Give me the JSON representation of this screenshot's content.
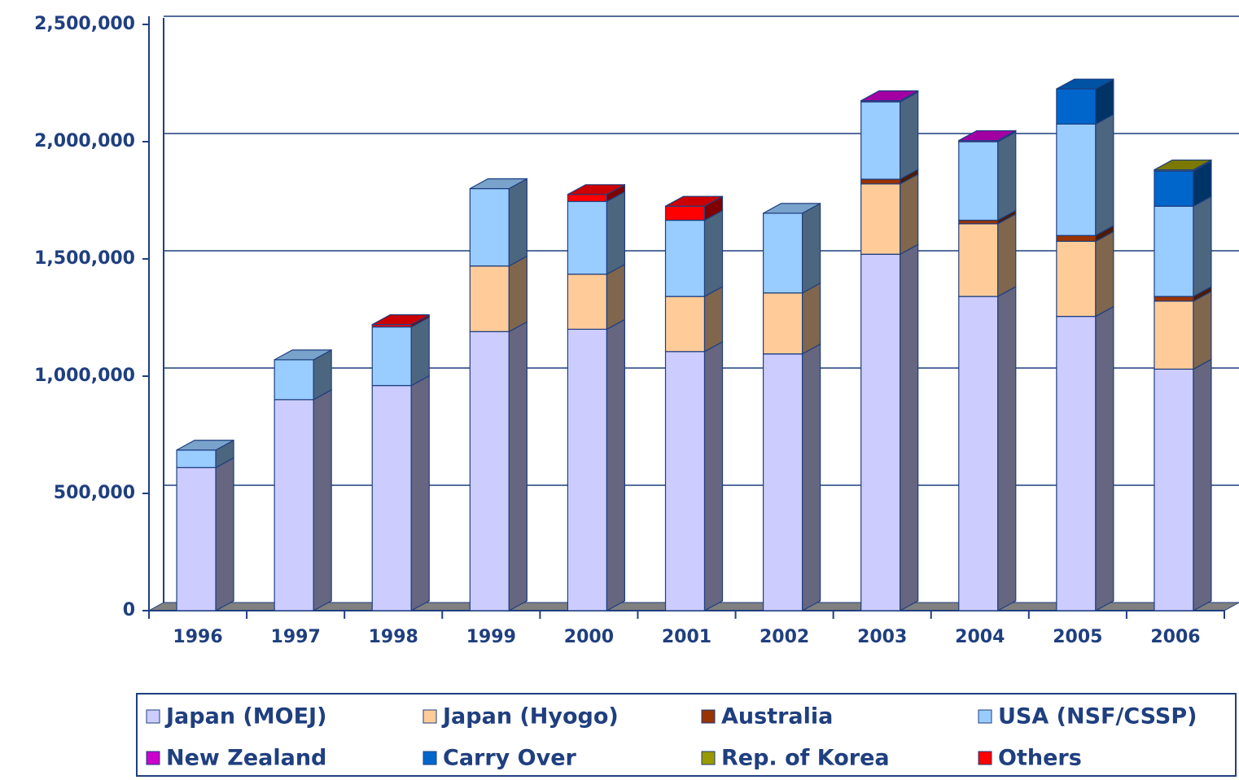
{
  "chart_data": {
    "type": "bar3d_stacked",
    "categories": [
      "1996",
      "1997",
      "1998",
      "1999",
      "2000",
      "2001",
      "2002",
      "2003",
      "2004",
      "2005",
      "2006"
    ],
    "series": [
      {
        "name": "Japan (MOEJ)",
        "color": "#ccccff",
        "values": [
          610000,
          900000,
          960000,
          1190000,
          1200000,
          1105000,
          1095000,
          1520000,
          1340000,
          1255000,
          1030000
        ]
      },
      {
        "name": "Japan (Hyogo)",
        "color": "#ffcc99",
        "values": [
          0,
          0,
          0,
          280000,
          235000,
          235000,
          260000,
          300000,
          310000,
          320000,
          290000
        ]
      },
      {
        "name": "Australia",
        "color": "#993300",
        "values": [
          0,
          0,
          0,
          0,
          0,
          0,
          0,
          20000,
          15000,
          25000,
          20000
        ]
      },
      {
        "name": "USA (NSF/CSSP)",
        "color": "#99ccff",
        "values": [
          75000,
          170000,
          250000,
          330000,
          310000,
          325000,
          340000,
          330000,
          335000,
          475000,
          385000
        ]
      },
      {
        "name": "New Zealand",
        "color": "#cc00cc",
        "values": [
          0,
          0,
          0,
          0,
          0,
          0,
          0,
          5000,
          5000,
          0,
          0
        ]
      },
      {
        "name": "Carry Over",
        "color": "#0066cc",
        "values": [
          0,
          0,
          0,
          0,
          0,
          0,
          0,
          0,
          0,
          150000,
          150000
        ]
      },
      {
        "name": "Rep. of Korea",
        "color": "#999900",
        "values": [
          0,
          0,
          0,
          0,
          0,
          0,
          0,
          0,
          0,
          0,
          5000
        ]
      },
      {
        "name": "Others",
        "color": "#ff0000",
        "values": [
          0,
          0,
          10000,
          0,
          30000,
          60000,
          0,
          0,
          0,
          0,
          0
        ]
      }
    ],
    "ylim": [
      0,
      2500000
    ],
    "yticks": [
      0,
      {
        "value": 500000,
        "label": "500,000"
      },
      {
        "value": 1000000,
        "label": "1,000,000"
      },
      {
        "value": 1500000,
        "label": "1,500,000"
      },
      {
        "value": 2000000,
        "label": "2,000,000"
      },
      {
        "value": 2500000,
        "label": "2,500,000"
      }
    ],
    "grid": true
  }
}
